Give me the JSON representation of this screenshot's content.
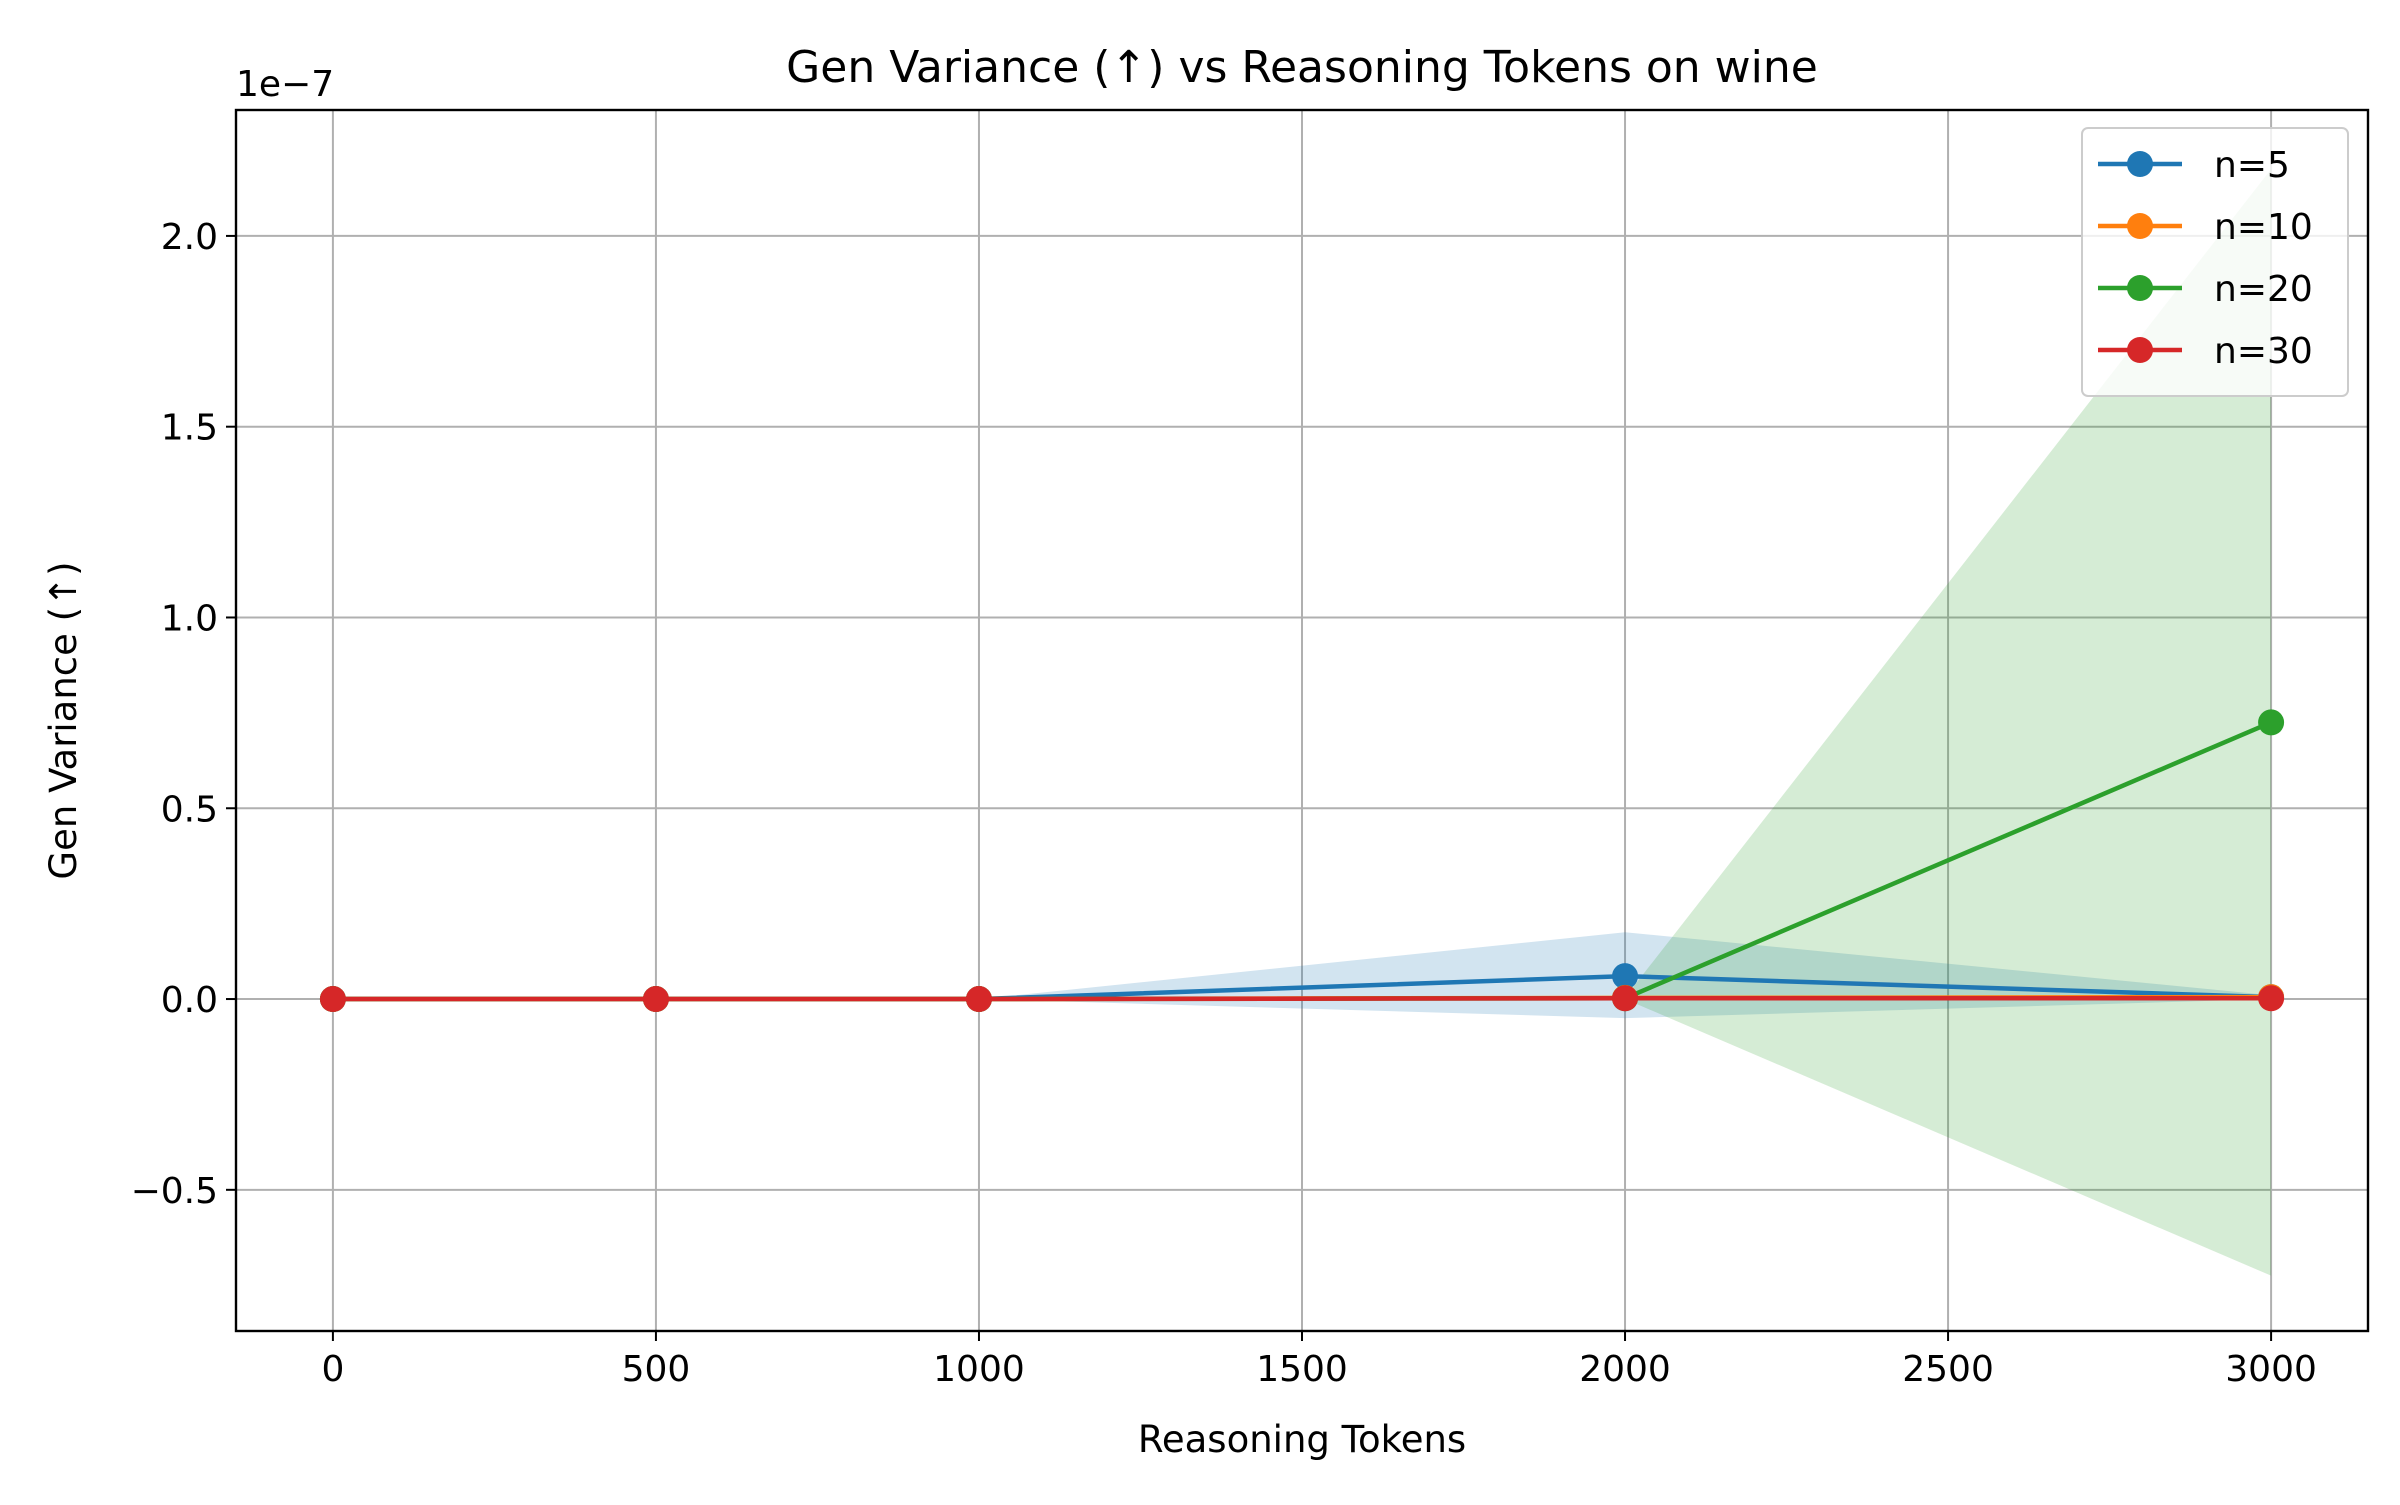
{
  "chart_data": {
    "type": "line",
    "title": "Gen Variance (↑) vs Reasoning Tokens on wine",
    "xlabel": "Reasoning Tokens",
    "ylabel": "Gen Variance (↑)",
    "y_offset_label": "1e−7",
    "y_scale_factor": 1e-07,
    "xlim": [
      -150,
      3150
    ],
    "ylim": [
      -0.87,
      2.33
    ],
    "x_ticks": [
      0,
      500,
      1000,
      1500,
      2000,
      2500,
      3000
    ],
    "y_ticks": [
      -0.5,
      0.0,
      0.5,
      1.0,
      1.5,
      2.0
    ],
    "y_tick_labels": [
      "−0.5",
      "0.0",
      "0.5",
      "1.0",
      "1.5",
      "2.0"
    ],
    "grid": true,
    "legend_position": "top-right",
    "x": [
      0,
      500,
      1000,
      2000,
      3000
    ],
    "series": [
      {
        "name": "n=5",
        "color": "#1f77b4",
        "values": [
          0.0,
          0.0,
          0.0,
          0.06,
          0.005
        ],
        "band_low": [
          0.0,
          0.0,
          0.0,
          -0.05,
          0.0
        ],
        "band_high": [
          0.0,
          0.0,
          0.0,
          0.175,
          0.01
        ]
      },
      {
        "name": "n=10",
        "color": "#ff7f0e",
        "values": [
          0.0,
          0.0,
          0.0,
          0.003,
          0.005
        ],
        "band_low": [
          0.0,
          0.0,
          0.0,
          0.0,
          0.0
        ],
        "band_high": [
          0.0,
          0.0,
          0.0,
          0.006,
          0.01
        ]
      },
      {
        "name": "n=20",
        "color": "#2ca02c",
        "values": [
          0.0,
          0.0,
          0.0,
          0.002,
          0.725
        ],
        "band_low": [
          0.0,
          0.0,
          0.0,
          0.0,
          -0.725
        ],
        "band_high": [
          0.0,
          0.0,
          0.0,
          0.004,
          2.175
        ]
      },
      {
        "name": "n=30",
        "color": "#d62728",
        "values": [
          0.0,
          0.0,
          0.0,
          0.002,
          0.002
        ],
        "band_low": [
          0.0,
          0.0,
          0.0,
          0.0,
          0.0
        ],
        "band_high": [
          0.0,
          0.0,
          0.0,
          0.004,
          0.004
        ]
      }
    ]
  }
}
